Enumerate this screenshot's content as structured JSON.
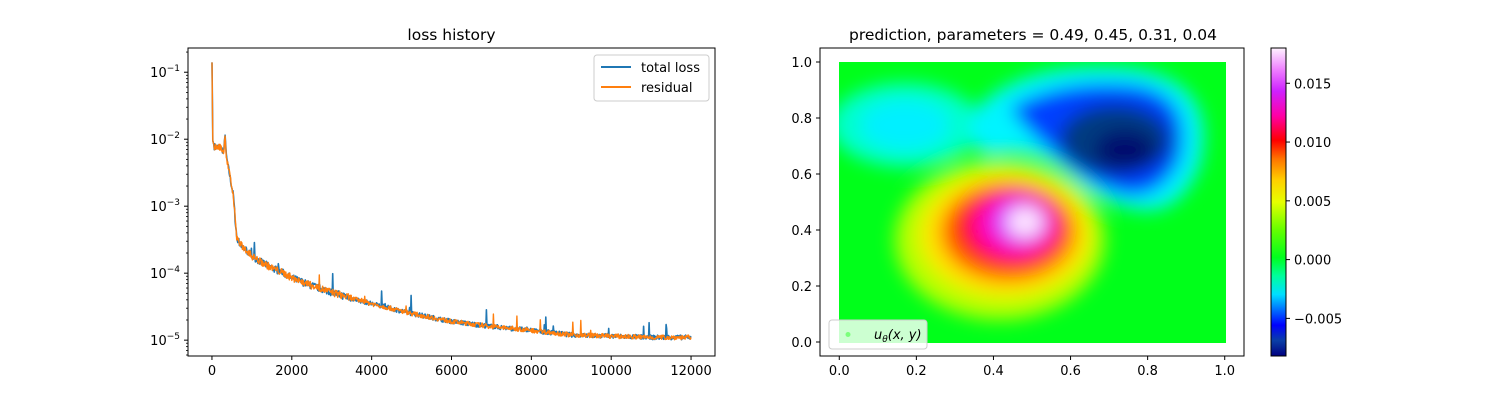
{
  "chart_data": [
    {
      "type": "line",
      "title": "loss history",
      "xlabel": "",
      "ylabel": "",
      "yscale": "log",
      "xlim": [
        -600,
        12600
      ],
      "ylim": [
        5.8e-06,
        0.23
      ],
      "x_ticks": [
        0,
        2000,
        4000,
        6000,
        8000,
        10000,
        12000
      ],
      "x_tick_labels": [
        "0",
        "2000",
        "4000",
        "6000",
        "8000",
        "10000",
        "12000"
      ],
      "y_ticks": [
        1e-05,
        0.0001,
        0.001,
        0.01,
        0.1
      ],
      "y_tick_labels": [
        "10^{-5}",
        "10^{-4}",
        "10^{-3}",
        "10^{-2}",
        "10^{-1}"
      ],
      "legend_position": "upper right",
      "series": [
        {
          "name": "total loss",
          "color": "#1f77b4",
          "x": [
            0,
            20,
            60,
            120,
            180,
            240,
            300,
            330,
            360,
            420,
            480,
            540,
            580,
            620,
            700,
            800,
            1000,
            1200,
            1500,
            1800,
            2000,
            2500,
            3000,
            3500,
            4000,
            5000,
            6000,
            7000,
            8000,
            9000,
            10000,
            11000,
            12000
          ],
          "y": [
            0.14,
            0.0095,
            0.0078,
            0.0075,
            0.0078,
            0.0072,
            0.0065,
            0.0125,
            0.0055,
            0.0035,
            0.0022,
            0.0014,
            0.00065,
            0.00035,
            0.00027,
            0.00024,
            0.00018,
            0.00015,
            0.00012,
            0.0001,
            8.5e-05,
            6.5e-05,
            5.2e-05,
            4.2e-05,
            3.5e-05,
            2.5e-05,
            1.9e-05,
            1.6e-05,
            1.4e-05,
            1.2e-05,
            1.15e-05,
            1.1e-05,
            1.1e-05
          ]
        },
        {
          "name": "residual",
          "color": "#ff7f0e",
          "x": [
            0,
            20,
            60,
            120,
            180,
            240,
            300,
            330,
            360,
            420,
            480,
            540,
            580,
            620,
            700,
            800,
            1000,
            1200,
            1500,
            1800,
            2000,
            2500,
            3000,
            3500,
            4000,
            5000,
            6000,
            7000,
            8000,
            9000,
            10000,
            11000,
            12000
          ],
          "y": [
            0.14,
            0.0095,
            0.0078,
            0.0075,
            0.0078,
            0.0072,
            0.0065,
            0.0125,
            0.0055,
            0.0035,
            0.0022,
            0.0014,
            0.00065,
            0.00035,
            0.00027,
            0.00024,
            0.00018,
            0.00015,
            0.00012,
            0.0001,
            8.5e-05,
            6.5e-05,
            5.2e-05,
            4.2e-05,
            3.5e-05,
            2.5e-05,
            1.9e-05,
            1.6e-05,
            1.4e-05,
            1.2e-05,
            1.15e-05,
            1.1e-05,
            1.1e-05
          ]
        }
      ]
    },
    {
      "type": "heatmap",
      "title": "prediction, parameters = 0.49, 0.45, 0.31, 0.04",
      "xlabel": "",
      "ylabel": "",
      "xlim": [
        -0.05,
        1.05
      ],
      "ylim": [
        -0.05,
        1.05
      ],
      "x_ticks": [
        0.0,
        0.2,
        0.4,
        0.6,
        0.8,
        1.0
      ],
      "x_tick_labels": [
        "0.0",
        "0.2",
        "0.4",
        "0.6",
        "0.8",
        "1.0"
      ],
      "y_ticks": [
        0.0,
        0.2,
        0.4,
        0.6,
        0.8,
        1.0
      ],
      "y_tick_labels": [
        "0.0",
        "0.2",
        "0.4",
        "0.6",
        "0.8",
        "1.0"
      ],
      "colormap": "gist_ncar",
      "colorbar": {
        "range": [
          -0.0082,
          0.018
        ],
        "ticks": [
          -0.005,
          0.0,
          0.005,
          0.01,
          0.015
        ],
        "tick_labels": [
          "−0.005",
          "0.000",
          "0.005",
          "0.010",
          "0.015"
        ]
      },
      "legend_position": "lower left",
      "legend_label_base": "u",
      "legend_label_sub": "θ",
      "legend_label_args": "(x, y)",
      "features": [
        {
          "kind": "maximum",
          "x": 0.48,
          "y": 0.42,
          "value": 0.018
        },
        {
          "kind": "minimum",
          "x": 0.75,
          "y": 0.72,
          "value": -0.0082
        },
        {
          "kind": "lobe",
          "x": 0.25,
          "y": 0.85,
          "value": -0.0015
        }
      ]
    }
  ]
}
